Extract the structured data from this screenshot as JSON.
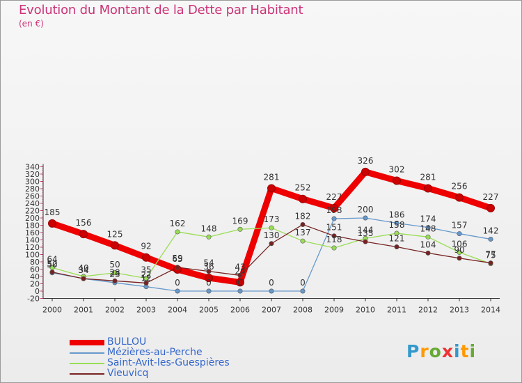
{
  "page": {
    "title": "Evolution du Montant de la Dette par Habitant",
    "subtitle": "(en €)",
    "logo": "Proxiti"
  },
  "colors": {
    "title": "#cc3377",
    "legend_text": "#3366cc",
    "axis": "#333333",
    "grid_tick": "#cc3377"
  },
  "chart_data": {
    "type": "line",
    "title": "Evolution du Montant de la Dette par Habitant",
    "ylabel": "(en €)",
    "xlabel": "",
    "x": [
      "2000",
      "2001",
      "2002",
      "2003",
      "2004",
      "2005",
      "2006",
      "2007",
      "2008",
      "2009",
      "2010",
      "2011",
      "2012",
      "2013",
      "2014"
    ],
    "ylim": [
      -20,
      340
    ],
    "yticks": [
      -20,
      0,
      20,
      40,
      60,
      80,
      100,
      120,
      140,
      160,
      180,
      200,
      220,
      240,
      260,
      280,
      300,
      320,
      340
    ],
    "legend_position": "bottom-left",
    "series": [
      {
        "name": "BULLOU",
        "color": "#ee0000",
        "values": [
          185,
          156,
          125,
          92,
          59,
          36,
          24,
          281,
          252,
          227,
          326,
          302,
          281,
          256,
          227
        ],
        "labels": [
          "185",
          "156",
          "125",
          "92",
          "59",
          "36",
          "24",
          "281",
          "252",
          "227",
          "326",
          "302",
          "281",
          "256",
          "227"
        ]
      },
      {
        "name": "Mézières-au-Perche",
        "color": "#6699cc",
        "values": [
          50,
          34,
          23,
          12,
          0,
          0,
          0,
          0,
          0,
          198,
          200,
          186,
          174,
          157,
          142
        ],
        "labels": [
          "50",
          "34",
          "23",
          "12",
          "0",
          "0",
          "0",
          "0",
          "0",
          "198",
          "200",
          "186",
          "174",
          "157",
          "142"
        ]
      },
      {
        "name": "Saint-Avit-les-Guespières",
        "color": "#99dd55",
        "values": [
          64,
          40,
          50,
          35,
          162,
          148,
          169,
          173,
          137,
          118,
          144,
          158,
          148,
          106,
          75
        ],
        "labels": [
          "64",
          "40",
          "50",
          "35",
          "162",
          "148",
          "169",
          "173",
          "137",
          "118",
          "144",
          "158",
          "148",
          "106",
          "75"
        ]
      },
      {
        "name": "Vieuvicq",
        "color": "#772222",
        "values": [
          52,
          34,
          28,
          22,
          65,
          54,
          43,
          130,
          182,
          151,
          135,
          121,
          104,
          90,
          77
        ],
        "labels": [
          "52",
          "34",
          "28",
          "22",
          "65",
          "54",
          "43",
          "130",
          "182",
          "151",
          "135",
          "121",
          "104",
          "90",
          "77"
        ]
      }
    ]
  }
}
